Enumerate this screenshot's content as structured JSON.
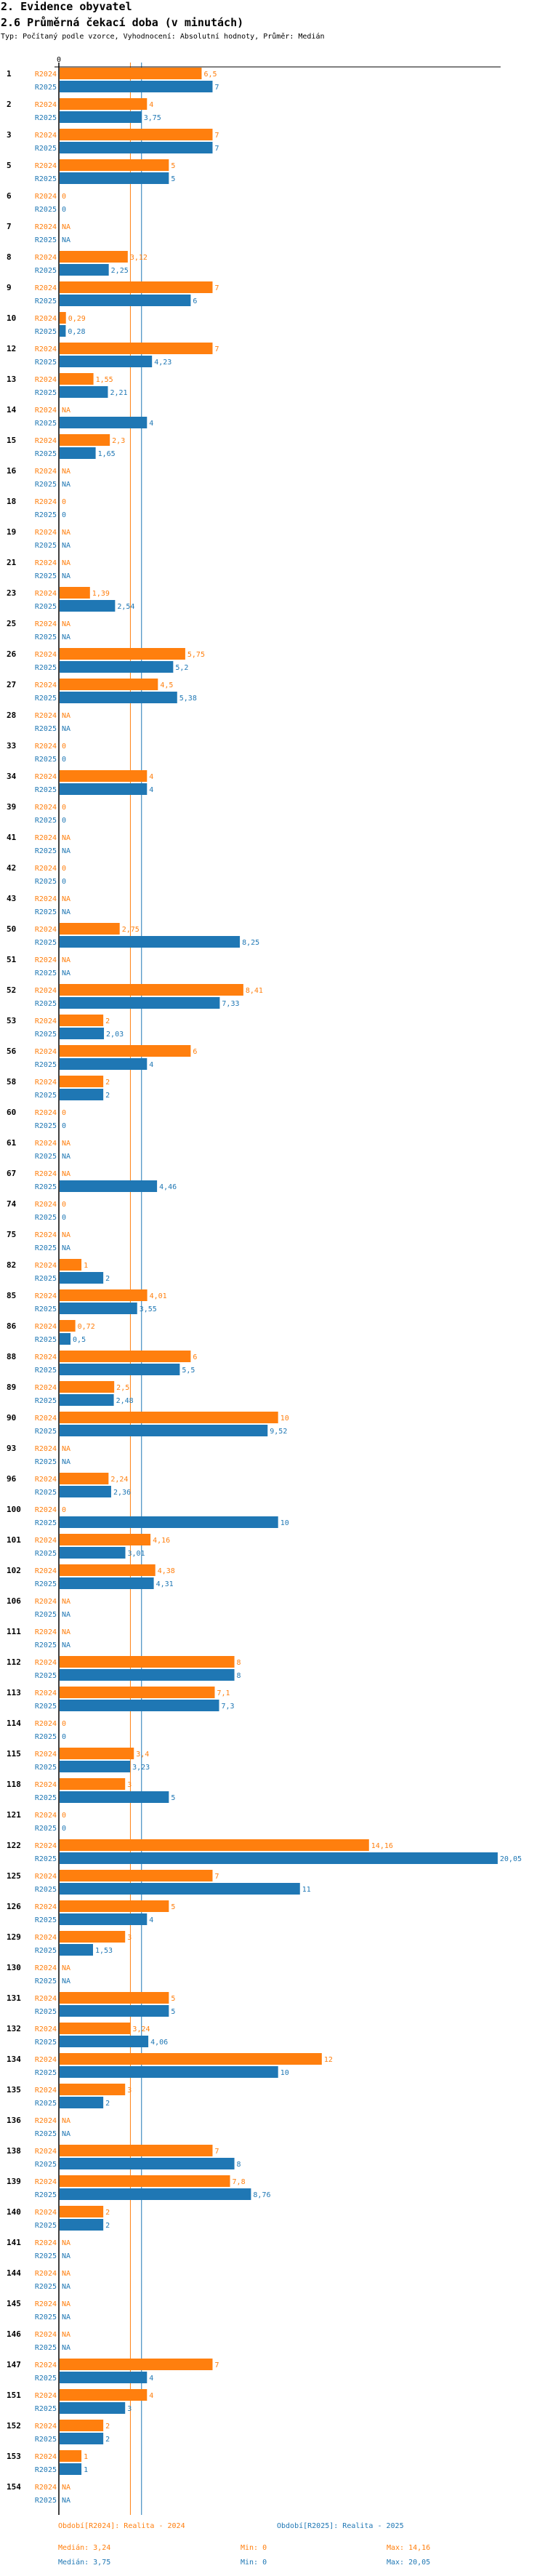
{
  "header": {
    "section_title": "2. Evidence obyvatel",
    "chart_title": "2.6 Průměrná čekací doba (v minutách)",
    "subtitle": "Typ: Počítaný podle vzorce, Vyhodnocení: Absolutní hodnoty, Průměr: Medián"
  },
  "colors": {
    "r2024": "#ff7f0e",
    "r2025": "#1f77b4"
  },
  "chart_data": {
    "type": "bar",
    "orientation": "horizontal",
    "xlim": [
      0,
      20.05
    ],
    "x_tick_labels": [
      "0"
    ],
    "series_names": [
      "R2024",
      "R2025"
    ],
    "categories": [
      "1",
      "2",
      "3",
      "5",
      "6",
      "7",
      "8",
      "9",
      "10",
      "12",
      "13",
      "14",
      "15",
      "16",
      "18",
      "19",
      "21",
      "23",
      "25",
      "26",
      "27",
      "28",
      "33",
      "34",
      "39",
      "41",
      "42",
      "43",
      "50",
      "51",
      "52",
      "53",
      "56",
      "58",
      "60",
      "61",
      "67",
      "74",
      "75",
      "82",
      "85",
      "86",
      "88",
      "89",
      "90",
      "93",
      "96",
      "100",
      "101",
      "102",
      "106",
      "111",
      "112",
      "113",
      "114",
      "115",
      "118",
      "121",
      "122",
      "125",
      "126",
      "129",
      "130",
      "131",
      "132",
      "134",
      "135",
      "136",
      "138",
      "139",
      "140",
      "141",
      "144",
      "145",
      "146",
      "147",
      "151",
      "152",
      "153",
      "154"
    ],
    "series": [
      {
        "name": "R2024",
        "values": [
          "6,5",
          "4",
          "7",
          "5",
          "0",
          "NA",
          "3,12",
          "7",
          "0,29",
          "7",
          "1,55",
          "NA",
          "2,3",
          "NA",
          "0",
          "NA",
          "NA",
          "1,39",
          "NA",
          "5,75",
          "4,5",
          "NA",
          "0",
          "4",
          "0",
          "NA",
          "0",
          "NA",
          "2,75",
          "NA",
          "8,41",
          "2",
          "6",
          "2",
          "0",
          "NA",
          "NA",
          "0",
          "NA",
          "1",
          "4,01",
          "0,72",
          "6",
          "2,5",
          "10",
          "NA",
          "2,24",
          "0",
          "4,16",
          "4,38",
          "NA",
          "NA",
          "8",
          "7,1",
          "0",
          "3,4",
          "3",
          "0",
          "14,16",
          "7",
          "5",
          "3",
          "NA",
          "5",
          "3,24",
          "12",
          "3",
          "NA",
          "7",
          "7,8",
          "2",
          "NA",
          "NA",
          "NA",
          "NA",
          "7",
          "4",
          "2",
          "1",
          "NA"
        ]
      },
      {
        "name": "R2025",
        "values": [
          "7",
          "3,75",
          "7",
          "5",
          "0",
          "NA",
          "2,25",
          "6",
          "0,28",
          "4,23",
          "2,21",
          "4",
          "1,65",
          "NA",
          "0",
          "NA",
          "NA",
          "2,54",
          "NA",
          "5,2",
          "5,38",
          "NA",
          "0",
          "4",
          "0",
          "NA",
          "0",
          "NA",
          "8,25",
          "NA",
          "7,33",
          "2,03",
          "4",
          "2",
          "0",
          "NA",
          "4,46",
          "0",
          "NA",
          "2",
          "3,55",
          "0,5",
          "5,5",
          "2,48",
          "9,52",
          "NA",
          "2,36",
          "10",
          "3,01",
          "4,31",
          "NA",
          "NA",
          "8",
          "7,3",
          "0",
          "3,23",
          "5",
          "0",
          "20,05",
          "11",
          "4",
          "1,53",
          "NA",
          "5",
          "4,06",
          "10",
          "2",
          "NA",
          "8",
          "8,76",
          "2",
          "NA",
          "NA",
          "NA",
          "NA",
          "4",
          "3",
          "2",
          "1",
          "NA"
        ]
      }
    ],
    "reference_lines": [
      {
        "series": "R2024",
        "kind": "median",
        "value": 3.24
      },
      {
        "series": "R2025",
        "kind": "median",
        "value": 3.75
      }
    ]
  },
  "legend": {
    "r2024": {
      "period": "Období[R2024]: Realita - 2024",
      "median": "Medián: 3,24",
      "min": "Min: 0",
      "max": "Max: 14,16"
    },
    "r2025": {
      "period": "Období[R2025]: Realita - 2025",
      "median": "Medián: 3,75",
      "min": "Min: 0",
      "max": "Max: 20,05"
    }
  }
}
